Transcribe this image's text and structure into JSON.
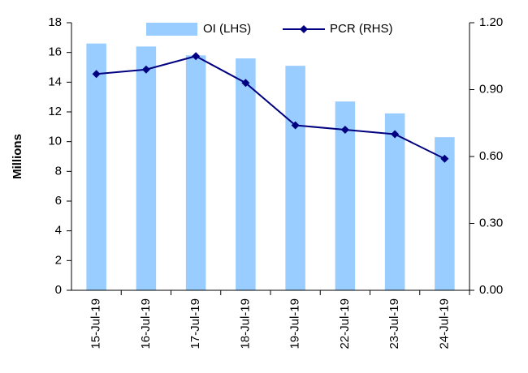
{
  "chart_data": {
    "type": "bar",
    "y_label": "Millions",
    "categories": [
      "15-Jul-19",
      "16-Jul-19",
      "17-Jul-19",
      "18-Jul-19",
      "19-Jul-19",
      "22-Jul-19",
      "23-Jul-19",
      "24-Jul-19"
    ],
    "series": [
      {
        "name": "OI (LHS)",
        "type": "bar",
        "color": "#99ccff",
        "values": [
          16.6,
          16.4,
          15.8,
          15.6,
          15.1,
          12.7,
          11.9,
          10.3
        ]
      },
      {
        "name": "PCR (RHS)",
        "type": "line",
        "axis": "y2",
        "color": "#000080",
        "values": [
          0.97,
          0.99,
          1.05,
          0.93,
          0.74,
          0.72,
          0.7,
          0.59
        ]
      }
    ],
    "ylim": [
      0,
      18
    ],
    "yticks": [
      0,
      2,
      4,
      6,
      8,
      10,
      12,
      14,
      16,
      18
    ],
    "y2lim": [
      0,
      1.2
    ],
    "y2ticks": [
      {
        "value": 0,
        "label": "0.00"
      },
      {
        "value": 0.3,
        "label": "0.30"
      },
      {
        "value": 0.6,
        "label": "0.60"
      },
      {
        "value": 0.9,
        "label": "0.90"
      },
      {
        "value": 1.2,
        "label": "1.20"
      }
    ],
    "legend": "top"
  }
}
